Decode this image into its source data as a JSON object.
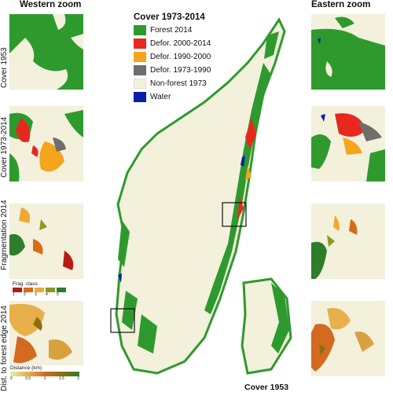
{
  "columns": {
    "west_title": "Western zoom",
    "east_title": "Eastern zoom"
  },
  "row_labels": [
    "Cover 1953",
    "Cover 1973-2014",
    "Fragmentation 2014",
    "Dist. to forest edge 2014"
  ],
  "legend": {
    "title": "Cover 1973-2014",
    "items": [
      {
        "label": "Forest 2014",
        "color": "#2e9a2e"
      },
      {
        "label": "Defor. 2000-2014",
        "color": "#e8281e"
      },
      {
        "label": "Defor. 1990-2000",
        "color": "#f5a41c"
      },
      {
        "label": "Defor. 1973-1990",
        "color": "#6e6e6e"
      },
      {
        "label": "Non-forest 1973",
        "color": "#f3f0dc"
      },
      {
        "label": "Water",
        "color": "#0a1fa8"
      }
    ]
  },
  "frag_legend": {
    "title": "Frag. class",
    "classes": [
      "1",
      "2",
      "3",
      "4",
      "5"
    ],
    "colors": [
      "#b51c14",
      "#d86a18",
      "#f0a830",
      "#8a9a20",
      "#2e7d2a"
    ]
  },
  "dist_legend": {
    "title": "Distance (km)",
    "ticks": [
      "0",
      "0.5",
      "1",
      "1.5",
      "2"
    ]
  },
  "map_label": "Cover 1953"
}
